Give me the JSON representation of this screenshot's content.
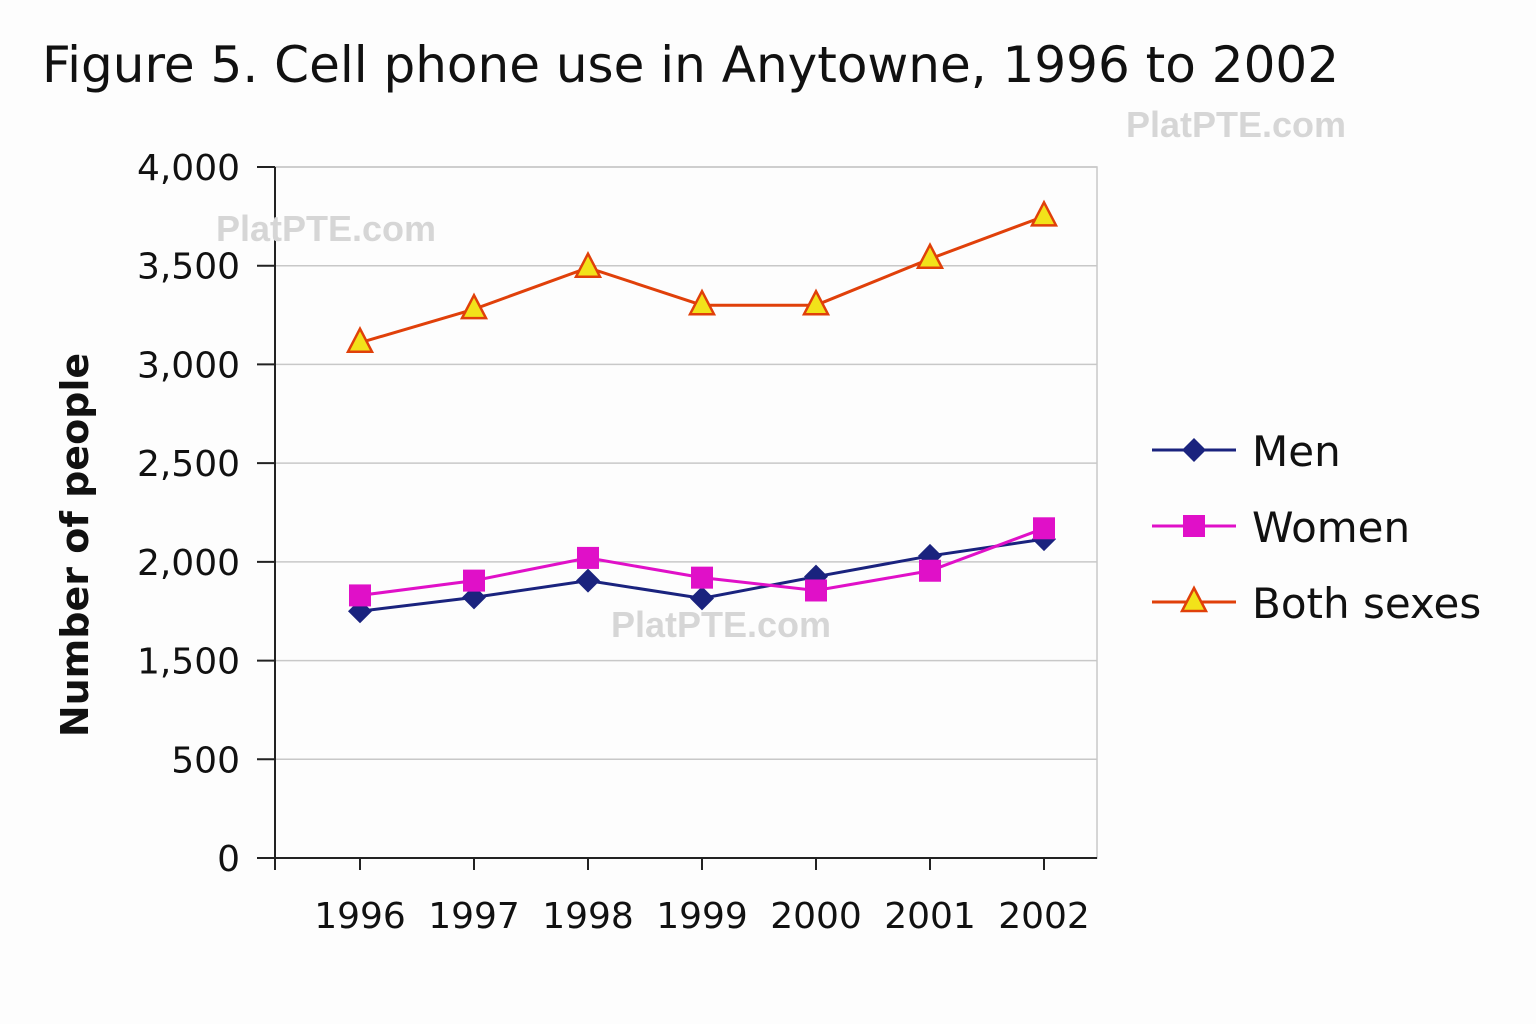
{
  "chart_data": {
    "type": "line",
    "title": "Figure 5. Cell phone use in Anytowne, 1996 to 2002",
    "xlabel": "",
    "ylabel": "Number of people",
    "categories": [
      "1996",
      "1997",
      "1998",
      "1999",
      "2000",
      "2001",
      "2002"
    ],
    "y_tick_labels": [
      "0",
      "500",
      "1,500",
      "2,000",
      "2,500",
      "3,000",
      "3,500",
      "4,000"
    ],
    "y_tick_values": [
      0,
      500,
      1500,
      2000,
      2500,
      3000,
      3500,
      4000
    ],
    "ylim": [
      0,
      4000
    ],
    "grid": true,
    "legend_position": "right",
    "series": [
      {
        "name": "Men",
        "color": "#1a237e",
        "marker": "diamond",
        "values": [
          1750,
          1820,
          1905,
          1815,
          1925,
          2030,
          2115
        ]
      },
      {
        "name": "Women",
        "color": "#e010c8",
        "marker": "square",
        "values": [
          1830,
          1905,
          2020,
          1920,
          1855,
          1955,
          2170
        ]
      },
      {
        "name": "Both sexes",
        "color": "#e0400a",
        "marker_fill": "#f2e21a",
        "marker": "triangle",
        "values": [
          3110,
          3280,
          3490,
          3300,
          3300,
          3535,
          3750
        ]
      }
    ]
  },
  "watermarks": [
    "PlatPTE.com",
    "PlatPTE.com",
    "PlatPTE.com"
  ]
}
